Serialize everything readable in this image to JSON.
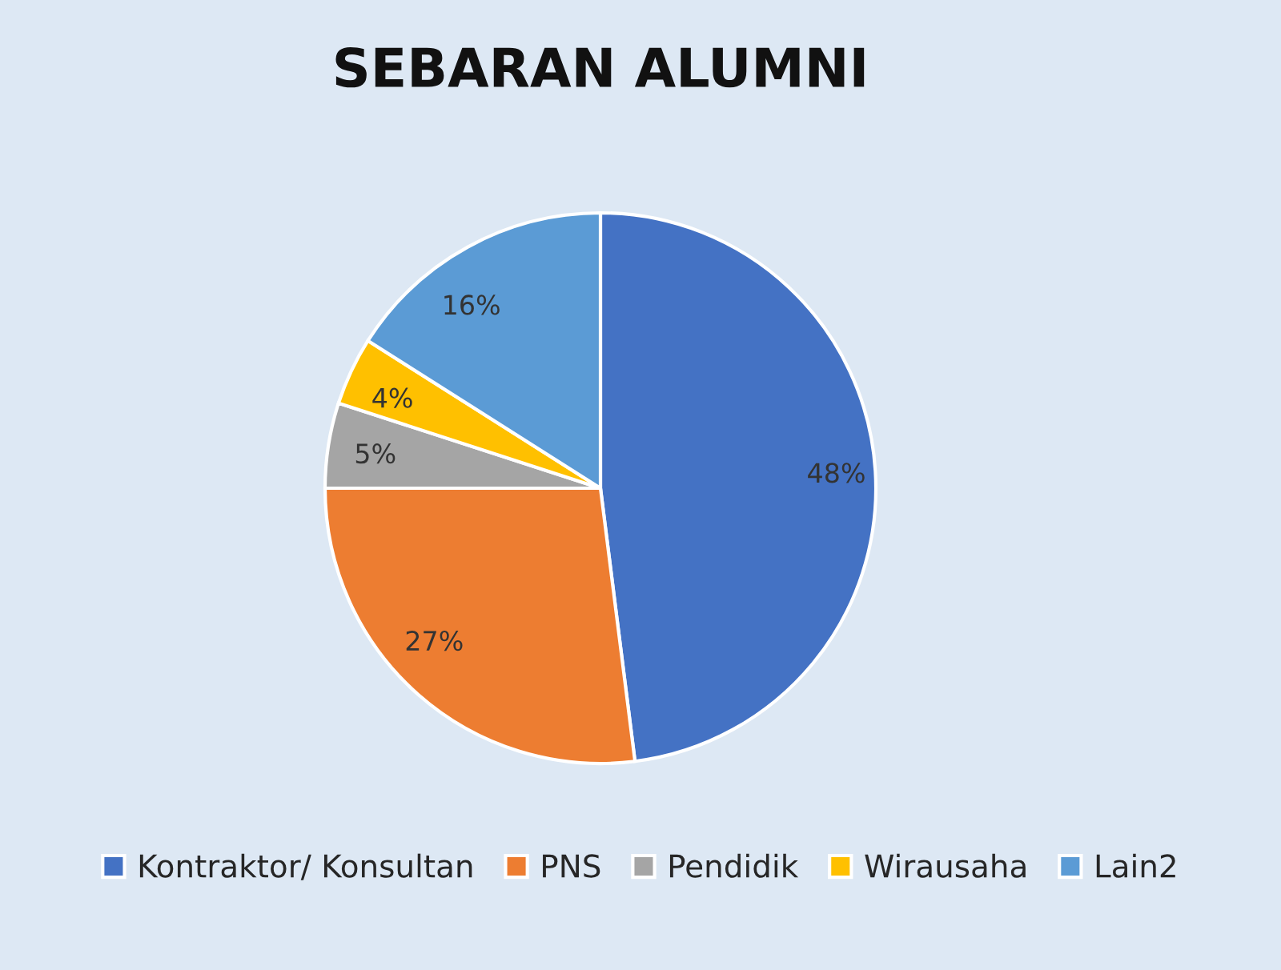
{
  "chart_data": {
    "type": "pie",
    "title": "SEBARAN ALUMNI",
    "categories": [
      "Kontraktor/ Konsultan",
      "PNS",
      "Pendidik",
      "Wirausaha",
      "Lain2"
    ],
    "values": [
      48,
      27,
      5,
      4,
      16
    ],
    "value_labels": [
      "48%",
      "27%",
      "5%",
      "4%",
      "16%"
    ],
    "colors": [
      "#4472c4",
      "#ed7d31",
      "#a5a5a5",
      "#ffc000",
      "#5b9bd5"
    ],
    "legend": "bottom"
  }
}
